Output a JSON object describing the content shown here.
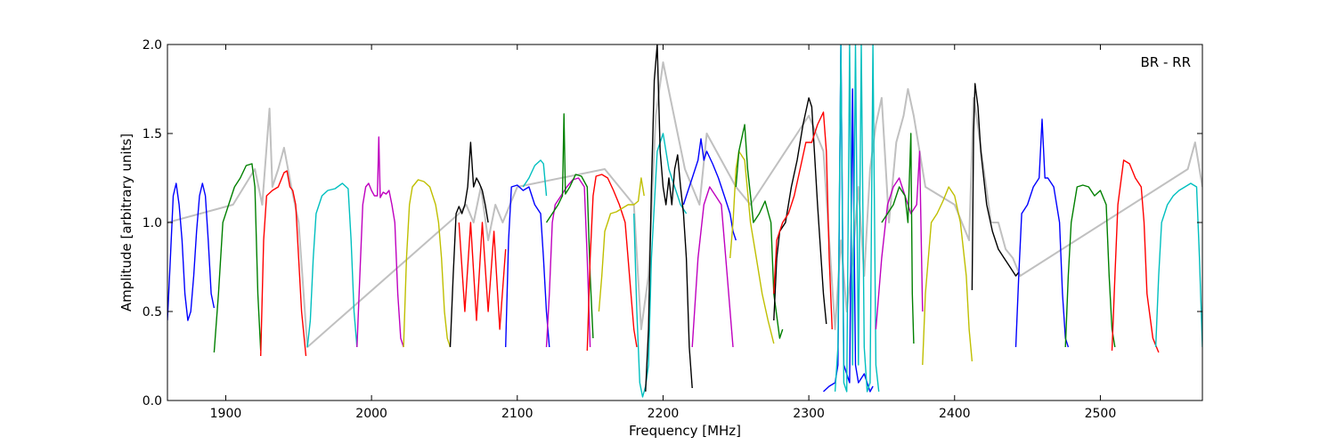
{
  "chart_data": {
    "type": "line",
    "title": "",
    "xlabel": "Frequency [MHz]",
    "ylabel": "Amplitude [arbitrary units]",
    "xlim": [
      1860,
      2570
    ],
    "ylim": [
      0.0,
      2.0
    ],
    "xticks": [
      1900,
      2000,
      2100,
      2200,
      2300,
      2400,
      2500
    ],
    "yticks": [
      0.0,
      0.5,
      1.0,
      1.5,
      2.0
    ],
    "xtick_labels": [
      "1900",
      "2000",
      "2100",
      "2200",
      "2300",
      "2400",
      "2500"
    ],
    "ytick_labels": [
      "0.0",
      "0.5",
      "1.0",
      "1.5",
      "2.0"
    ],
    "annotation": "BR - RR",
    "grid": false,
    "background_color": "#c0c0c0",
    "background_series": {
      "x": [
        1860,
        1905,
        1920,
        1925,
        1930,
        1932,
        1936,
        1940,
        1945,
        1950,
        1956,
        2060,
        2065,
        2070,
        2075,
        2080,
        2085,
        2090,
        2100,
        2160,
        2180,
        2185,
        2190,
        2195,
        2200,
        2205,
        2210,
        2215,
        2220,
        2225,
        2230,
        2250,
        2260,
        2300,
        2310,
        2318,
        2322,
        2326,
        2330,
        2334,
        2338,
        2342,
        2346,
        2350,
        2355,
        2360,
        2365,
        2368,
        2372,
        2380,
        2400,
        2410,
        2413,
        2415,
        2420,
        2425,
        2430,
        2435,
        2440,
        2445,
        2560,
        2565,
        2570
      ],
      "y": [
        1.0,
        1.1,
        1.3,
        1.1,
        1.64,
        1.2,
        1.3,
        1.42,
        1.2,
        1.0,
        0.3,
        1.05,
        1.1,
        1.0,
        1.2,
        0.9,
        1.1,
        1.0,
        1.2,
        1.3,
        1.1,
        0.4,
        0.7,
        1.6,
        1.9,
        1.7,
        1.5,
        1.3,
        1.2,
        1.1,
        1.5,
        1.2,
        1.1,
        1.6,
        1.4,
        0.4,
        0.9,
        0.5,
        0.8,
        1.2,
        0.7,
        1.3,
        1.55,
        1.7,
        1.0,
        1.45,
        1.6,
        1.75,
        1.6,
        1.2,
        1.1,
        0.9,
        1.7,
        1.6,
        1.3,
        1.0,
        1.0,
        0.85,
        0.8,
        0.7,
        1.3,
        1.45,
        1.2
      ]
    },
    "series": [
      {
        "color": "#0000ff",
        "x": [
          1860,
          1862,
          1864,
          1866,
          1868,
          1870,
          1872,
          1874,
          1876,
          1878,
          1880,
          1882,
          1884,
          1886,
          1888,
          1890,
          1892
        ],
        "y": [
          0.45,
          0.8,
          1.15,
          1.22,
          1.1,
          0.9,
          0.6,
          0.45,
          0.5,
          0.7,
          0.95,
          1.15,
          1.22,
          1.15,
          0.9,
          0.6,
          0.52
        ]
      },
      {
        "color": "#008000",
        "x": [
          1892,
          1895,
          1898,
          1902,
          1906,
          1910,
          1914,
          1918,
          1920,
          1922,
          1924
        ],
        "y": [
          0.27,
          0.6,
          1.0,
          1.1,
          1.2,
          1.25,
          1.32,
          1.33,
          1.2,
          0.6,
          0.28
        ]
      },
      {
        "color": "#ff0000",
        "x": [
          1924,
          1926,
          1928,
          1932,
          1936,
          1940,
          1942,
          1944,
          1946,
          1948,
          1950,
          1952,
          1955
        ],
        "y": [
          0.25,
          0.9,
          1.15,
          1.18,
          1.2,
          1.28,
          1.29,
          1.2,
          1.18,
          1.1,
          0.8,
          0.5,
          0.25
        ]
      },
      {
        "color": "#00bfbf",
        "x": [
          1956,
          1958,
          1960,
          1962,
          1966,
          1970,
          1975,
          1980,
          1984,
          1986,
          1988,
          1990
        ],
        "y": [
          0.3,
          0.45,
          0.8,
          1.05,
          1.15,
          1.18,
          1.19,
          1.22,
          1.19,
          0.9,
          0.5,
          0.3
        ]
      },
      {
        "color": "#bf00bf",
        "x": [
          1990,
          1992,
          1994,
          1996,
          1998,
          2000,
          2002,
          2004,
          2005,
          2006,
          2008,
          2010,
          2012,
          2014,
          2016,
          2018,
          2020,
          2022
        ],
        "y": [
          0.3,
          0.7,
          1.1,
          1.2,
          1.22,
          1.18,
          1.15,
          1.15,
          1.48,
          1.14,
          1.17,
          1.16,
          1.18,
          1.1,
          1.0,
          0.6,
          0.35,
          0.3
        ]
      },
      {
        "color": "#bfbf00",
        "x": [
          2022,
          2024,
          2026,
          2028,
          2032,
          2036,
          2040,
          2044,
          2046,
          2048,
          2050,
          2052,
          2054
        ],
        "y": [
          0.3,
          0.8,
          1.1,
          1.2,
          1.24,
          1.23,
          1.2,
          1.1,
          1.0,
          0.8,
          0.5,
          0.35,
          0.3
        ]
      },
      {
        "color": "#000000",
        "x": [
          2054,
          2056,
          2058,
          2060,
          2062,
          2064,
          2066,
          2068,
          2070,
          2072,
          2074,
          2076,
          2078,
          2080
        ],
        "y": [
          0.3,
          0.7,
          1.05,
          1.09,
          1.05,
          1.1,
          1.2,
          1.45,
          1.2,
          1.25,
          1.22,
          1.18,
          1.1,
          1.0
        ]
      },
      {
        "color": "#ff0000",
        "x": [
          2060,
          2064,
          2068,
          2072,
          2076,
          2080,
          2084,
          2088,
          2092
        ],
        "y": [
          1.0,
          0.5,
          1.0,
          0.45,
          1.0,
          0.5,
          0.95,
          0.4,
          0.85
        ]
      },
      {
        "color": "#0000ff",
        "x": [
          2092,
          2094,
          2096,
          2100,
          2104,
          2108,
          2112,
          2116,
          2118,
          2120,
          2122
        ],
        "y": [
          0.3,
          0.9,
          1.2,
          1.21,
          1.18,
          1.2,
          1.1,
          1.05,
          0.8,
          0.5,
          0.3
        ]
      },
      {
        "color": "#00bfbf",
        "x": [
          2104,
          2108,
          2112,
          2116,
          2118,
          2120
        ],
        "y": [
          1.2,
          1.25,
          1.32,
          1.35,
          1.33,
          1.15
        ]
      },
      {
        "color": "#bf00bf",
        "x": [
          2120,
          2122,
          2124,
          2126,
          2130,
          2134,
          2138,
          2142,
          2146,
          2148,
          2150
        ],
        "y": [
          0.3,
          0.6,
          1.0,
          1.1,
          1.15,
          1.2,
          1.24,
          1.25,
          1.2,
          0.8,
          0.3
        ]
      },
      {
        "color": "#008000",
        "x": [
          2120,
          2124,
          2128,
          2131,
          2132,
          2133,
          2136,
          2140,
          2144,
          2148,
          2150,
          2152
        ],
        "y": [
          1.0,
          1.05,
          1.1,
          1.15,
          1.61,
          1.16,
          1.2,
          1.27,
          1.26,
          1.2,
          0.7,
          0.35
        ]
      },
      {
        "color": "#ff0000",
        "x": [
          2148,
          2150,
          2152,
          2154,
          2158,
          2162,
          2166,
          2170,
          2174,
          2178,
          2180,
          2182
        ],
        "y": [
          0.28,
          0.8,
          1.15,
          1.26,
          1.27,
          1.25,
          1.18,
          1.1,
          1.0,
          0.6,
          0.4,
          0.3
        ]
      },
      {
        "color": "#bfbf00",
        "x": [
          2156,
          2158,
          2160,
          2162,
          2164,
          2168,
          2172,
          2176,
          2180,
          2183,
          2185,
          2187
        ],
        "y": [
          0.5,
          0.7,
          0.95,
          1.0,
          1.05,
          1.06,
          1.08,
          1.1,
          1.1,
          1.12,
          1.25,
          1.15
        ]
      },
      {
        "color": "#00bfbf",
        "x": [
          2180,
          2182,
          2184,
          2186,
          2188,
          2190,
          2192,
          2196,
          2200,
          2204,
          2208,
          2212,
          2216
        ],
        "y": [
          1.05,
          0.5,
          0.1,
          0.02,
          0.08,
          0.2,
          0.8,
          1.4,
          1.5,
          1.3,
          1.2,
          1.1,
          1.05
        ]
      },
      {
        "color": "#000000",
        "x": [
          2188,
          2190,
          2192,
          2194,
          2196,
          2198,
          2200,
          2202,
          2204,
          2206,
          2208,
          2210,
          2212,
          2214,
          2216,
          2218,
          2220
        ],
        "y": [
          0.05,
          0.4,
          1.2,
          1.8,
          2.0,
          1.4,
          1.2,
          1.1,
          1.25,
          1.1,
          1.3,
          1.38,
          1.2,
          1.05,
          0.8,
          0.3,
          0.07
        ]
      },
      {
        "color": "#0000ff",
        "x": [
          2214,
          2216,
          2220,
          2224,
          2226,
          2228,
          2230,
          2234,
          2238,
          2242,
          2246,
          2248,
          2250
        ],
        "y": [
          1.1,
          1.15,
          1.25,
          1.35,
          1.47,
          1.35,
          1.4,
          1.33,
          1.25,
          1.15,
          1.05,
          0.95,
          0.9
        ]
      },
      {
        "color": "#bf00bf",
        "x": [
          2220,
          2224,
          2228,
          2232,
          2236,
          2240,
          2244,
          2248
        ],
        "y": [
          0.3,
          0.8,
          1.1,
          1.2,
          1.15,
          1.1,
          0.7,
          0.3
        ]
      },
      {
        "color": "#bfbf00",
        "x": [
          2246,
          2248,
          2250,
          2252,
          2256,
          2260,
          2264,
          2268,
          2272,
          2276
        ],
        "y": [
          0.8,
          1.0,
          1.3,
          1.4,
          1.35,
          1.0,
          0.8,
          0.6,
          0.45,
          0.32
        ]
      },
      {
        "color": "#008000",
        "x": [
          2250,
          2252,
          2256,
          2258,
          2262,
          2266,
          2270,
          2274,
          2276,
          2280,
          2282
        ],
        "y": [
          1.2,
          1.4,
          1.55,
          1.3,
          1.0,
          1.05,
          1.12,
          1.0,
          0.6,
          0.35,
          0.4
        ]
      },
      {
        "color": "#000000",
        "x": [
          2276,
          2278,
          2280,
          2284,
          2288,
          2292,
          2296,
          2300,
          2302,
          2306,
          2310,
          2312
        ],
        "y": [
          0.45,
          0.8,
          0.95,
          1.0,
          1.2,
          1.35,
          1.55,
          1.7,
          1.65,
          1.1,
          0.6,
          0.43
        ]
      },
      {
        "color": "#ff0000",
        "x": [
          2276,
          2278,
          2282,
          2286,
          2290,
          2294,
          2298,
          2302,
          2306,
          2310,
          2312,
          2314,
          2316
        ],
        "y": [
          0.6,
          0.9,
          1.0,
          1.05,
          1.15,
          1.3,
          1.45,
          1.45,
          1.55,
          1.62,
          1.4,
          0.8,
          0.4
        ]
      },
      {
        "color": "#0000ff",
        "x": [
          2310,
          2314,
          2318,
          2320,
          2322,
          2324,
          2328,
          2330,
          2332,
          2334,
          2338,
          2342,
          2344
        ],
        "y": [
          0.05,
          0.08,
          0.1,
          0.2,
          2.0,
          0.2,
          0.1,
          1.75,
          0.2,
          0.1,
          0.15,
          0.05,
          0.08
        ]
      },
      {
        "color": "#00bfbf",
        "x": [
          2318,
          2320,
          2322,
          2324,
          2326,
          2328,
          2330,
          2332,
          2334,
          2336,
          2338,
          2340,
          2342,
          2344,
          2346,
          2348
        ],
        "y": [
          0.05,
          0.3,
          2.0,
          0.1,
          0.05,
          2.0,
          0.2,
          2.0,
          0.2,
          2.0,
          0.3,
          0.05,
          0.1,
          2.0,
          0.2,
          0.05
        ]
      },
      {
        "color": "#bf00bf",
        "x": [
          2346,
          2350,
          2354,
          2358,
          2362,
          2366,
          2370,
          2374,
          2376,
          2378
        ],
        "y": [
          0.4,
          0.8,
          1.1,
          1.2,
          1.25,
          1.15,
          1.05,
          1.1,
          1.4,
          0.5
        ]
      },
      {
        "color": "#008000",
        "x": [
          2350,
          2354,
          2358,
          2362,
          2366,
          2368,
          2370,
          2371,
          2372
        ],
        "y": [
          1.0,
          1.05,
          1.1,
          1.2,
          1.15,
          1.0,
          1.5,
          0.6,
          0.32
        ]
      },
      {
        "color": "#bfbf00",
        "x": [
          2378,
          2380,
          2384,
          2388,
          2392,
          2396,
          2400,
          2404,
          2408,
          2410,
          2412
        ],
        "y": [
          0.2,
          0.6,
          1.0,
          1.05,
          1.12,
          1.2,
          1.15,
          1.0,
          0.7,
          0.4,
          0.22
        ]
      },
      {
        "color": "#000000",
        "x": [
          2412,
          2413,
          2414,
          2416,
          2418,
          2422,
          2426,
          2430,
          2434,
          2438,
          2442,
          2444
        ],
        "y": [
          0.62,
          1.5,
          1.78,
          1.65,
          1.4,
          1.1,
          0.95,
          0.85,
          0.8,
          0.75,
          0.7,
          0.72
        ]
      },
      {
        "color": "#0000ff",
        "x": [
          2442,
          2444,
          2446,
          2450,
          2454,
          2458,
          2460,
          2462,
          2464,
          2468,
          2472,
          2474,
          2476,
          2478
        ],
        "y": [
          0.3,
          0.7,
          1.05,
          1.1,
          1.2,
          1.25,
          1.58,
          1.25,
          1.25,
          1.2,
          1.0,
          0.6,
          0.35,
          0.3
        ]
      },
      {
        "color": "#008000",
        "x": [
          2476,
          2478,
          2480,
          2484,
          2488,
          2492,
          2496,
          2500,
          2504,
          2506,
          2508,
          2510
        ],
        "y": [
          0.3,
          0.7,
          1.0,
          1.2,
          1.21,
          1.2,
          1.15,
          1.18,
          1.1,
          0.7,
          0.4,
          0.3
        ]
      },
      {
        "color": "#ff0000",
        "x": [
          2508,
          2510,
          2512,
          2516,
          2520,
          2524,
          2528,
          2530,
          2532,
          2536,
          2540
        ],
        "y": [
          0.28,
          0.7,
          1.1,
          1.35,
          1.33,
          1.25,
          1.2,
          1.0,
          0.6,
          0.35,
          0.27
        ]
      },
      {
        "color": "#00bfbf",
        "x": [
          2538,
          2540,
          2542,
          2546,
          2550,
          2554,
          2558,
          2562,
          2566,
          2568,
          2570
        ],
        "y": [
          0.3,
          0.7,
          1.0,
          1.1,
          1.15,
          1.18,
          1.2,
          1.22,
          1.2,
          0.8,
          0.3
        ]
      }
    ]
  }
}
